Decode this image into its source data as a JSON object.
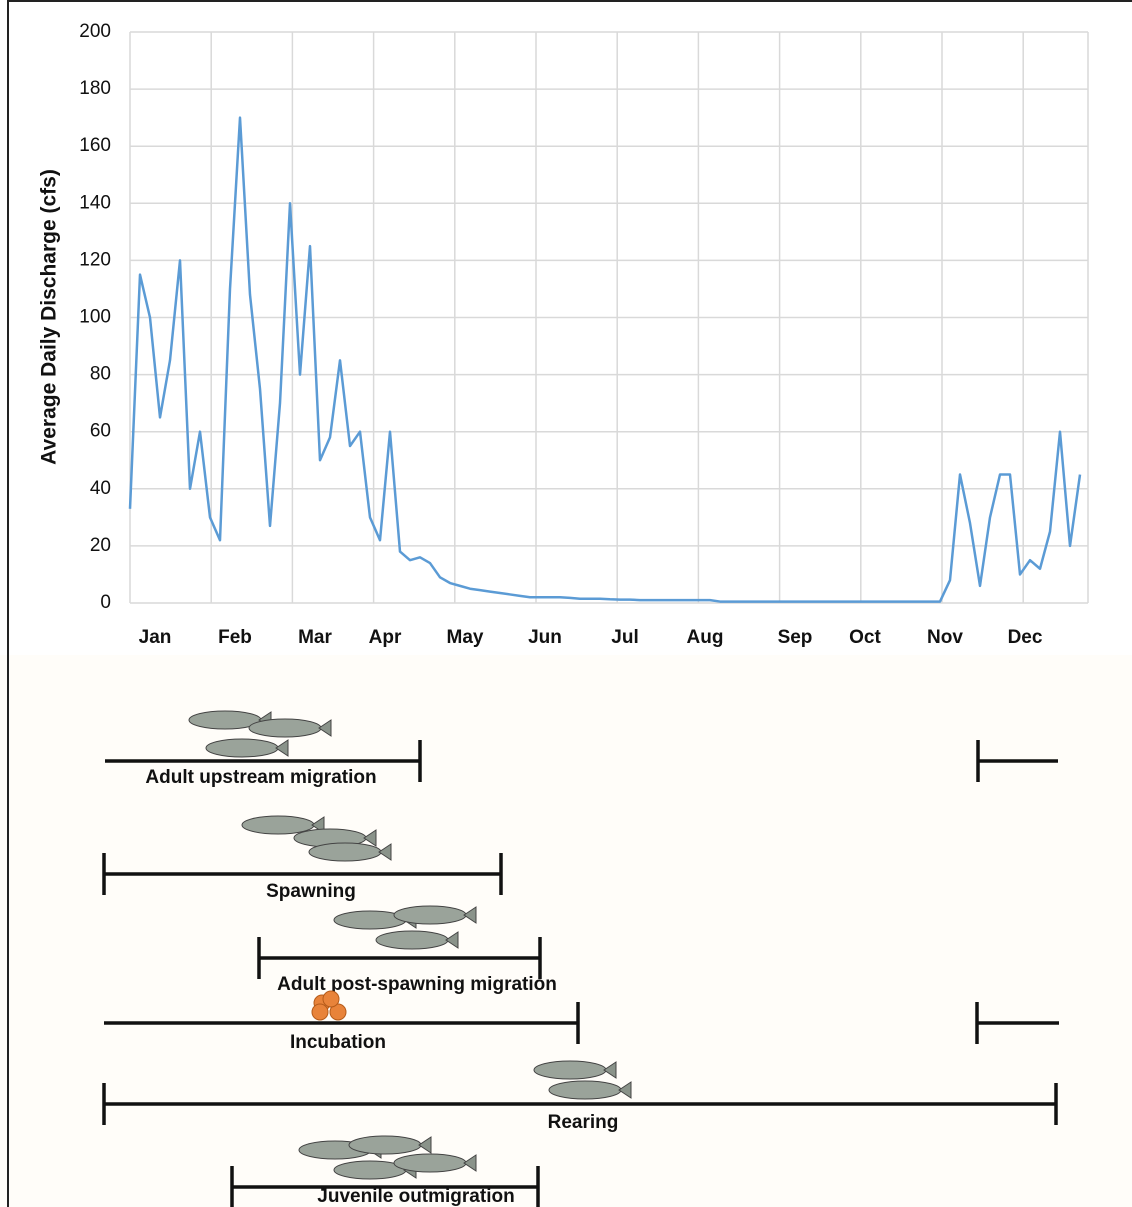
{
  "chart_data": {
    "type": "line",
    "y_label": "Average Daily Discharge (cfs)",
    "categories": [
      null,
      null,
      null,
      "Jan",
      null,
      null,
      null,
      null,
      null,
      null,
      null,
      "Feb",
      null,
      null,
      null,
      null,
      null,
      null,
      null,
      "Mar",
      null,
      null,
      null,
      null,
      null,
      null,
      "Apr",
      null,
      null,
      null,
      null,
      null,
      null,
      null,
      "May",
      null,
      null,
      null,
      null,
      null,
      null,
      null,
      "Jun",
      null,
      null,
      null,
      null,
      null,
      null,
      null,
      "Jul",
      null,
      null,
      null,
      null,
      null,
      null,
      null,
      "Aug",
      null,
      null,
      null,
      null,
      null,
      null,
      null,
      null,
      "Sep",
      null,
      null,
      null,
      null,
      null,
      null,
      "Oct",
      null,
      null,
      null,
      null,
      null,
      null,
      null,
      "Nov",
      null,
      null,
      null,
      null,
      null,
      null,
      null,
      "Dec",
      null,
      null,
      null,
      null,
      null
    ],
    "series": [
      {
        "name": "Average daily discharge",
        "color": "#5b9bd5",
        "values": [
          33,
          115,
          100,
          65,
          85,
          120,
          40,
          60,
          30,
          22,
          110,
          170,
          108,
          75,
          27,
          70,
          140,
          80,
          125,
          50,
          58,
          85,
          55,
          60,
          30,
          22,
          60,
          18,
          15,
          16,
          14,
          9,
          7,
          6,
          5,
          4.5,
          4,
          3.5,
          3,
          2.5,
          2,
          2,
          2,
          2,
          1.8,
          1.5,
          1.5,
          1.5,
          1.3,
          1.2,
          1.2,
          1,
          1,
          1,
          1,
          1,
          1,
          1,
          1,
          0.5,
          0.5,
          0.5,
          0.5,
          0.5,
          0.5,
          0.5,
          0.5,
          0.5,
          0.5,
          0.5,
          0.5,
          0.5,
          0.5,
          0.5,
          0.5,
          0.5,
          0.5,
          0.5,
          0.5,
          0.5,
          0.5,
          0.5,
          8,
          45,
          28,
          6,
          30,
          45,
          45,
          10,
          15,
          12,
          25,
          60,
          20,
          45
        ]
      }
    ],
    "ylim": [
      0,
      200
    ],
    "yticks": [
      0,
      20,
      40,
      60,
      80,
      100,
      120,
      140,
      160,
      180,
      200
    ],
    "grid": true
  },
  "timeline": {
    "stages": [
      {
        "label": "Adult upstream migration"
      },
      {
        "label": "Spawning"
      },
      {
        "label": "Adult post-spawning migration"
      },
      {
        "label": "Incubation"
      },
      {
        "label": "Rearing"
      },
      {
        "label": "Juvenile outmigration"
      }
    ]
  }
}
